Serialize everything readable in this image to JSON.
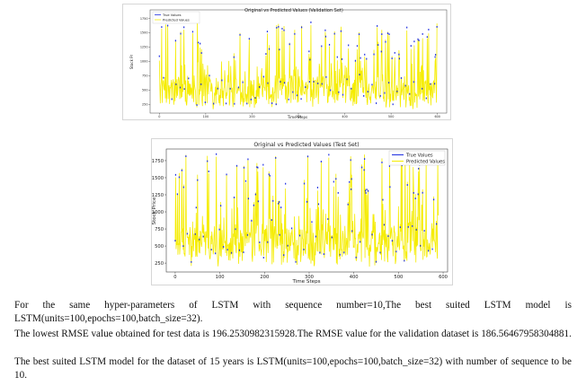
{
  "chart_data": [
    {
      "type": "line",
      "title": "Original vs Predicted Values (Validation Set)",
      "xlabel": "Time Steps",
      "ylabel": "Stock Pr",
      "xlim": [
        -20,
        620
      ],
      "ylim": [
        100,
        1900
      ],
      "xticks": [
        0,
        100,
        200,
        300,
        400,
        500,
        600
      ],
      "yticks": [
        250,
        500,
        750,
        1000,
        1250,
        1500,
        1750
      ],
      "legend": "top-left",
      "grid": false,
      "series": [
        {
          "name": "True Values",
          "color": "#1f2fe0",
          "style": "markers"
        },
        {
          "name": "Predicted Values",
          "color": "#f5ec00",
          "style": "line"
        }
      ],
      "n_points": 600,
      "value_range": [
        180,
        1780
      ]
    },
    {
      "type": "line",
      "title": "Original vs Predicted Values (Test Set)",
      "xlabel": "Time Steps",
      "ylabel": "Stock Price",
      "xlim": [
        -20,
        610
      ],
      "ylim": [
        120,
        1920
      ],
      "xticks": [
        0,
        100,
        200,
        300,
        400,
        500,
        600
      ],
      "yticks": [
        250,
        500,
        750,
        1000,
        1250,
        1500,
        1750
      ],
      "legend": "top-right",
      "grid": false,
      "series": [
        {
          "name": "True Values",
          "color": "#1f2fe0",
          "style": "markers"
        },
        {
          "name": "Predicted Values",
          "color": "#f5ec00",
          "style": "line"
        }
      ],
      "n_points": 590,
      "value_range": [
        200,
        1850
      ]
    }
  ],
  "text": {
    "para1": "For the same hyper-parameters of LSTM with sequence number=10,The best suited LSTM model is LSTM(units=100,epochs=100,batch_size=32).",
    "para2": "The lowest RMSE value obtained for test data is 196.2530982315928.The RMSE value for the validation dataset is 186.56467958304881.",
    "para3": "The best suited LSTM model for the dataset of 15 years is LSTM(units=100,epochs=100,batch_size=32) with number of sequence to be 10."
  }
}
